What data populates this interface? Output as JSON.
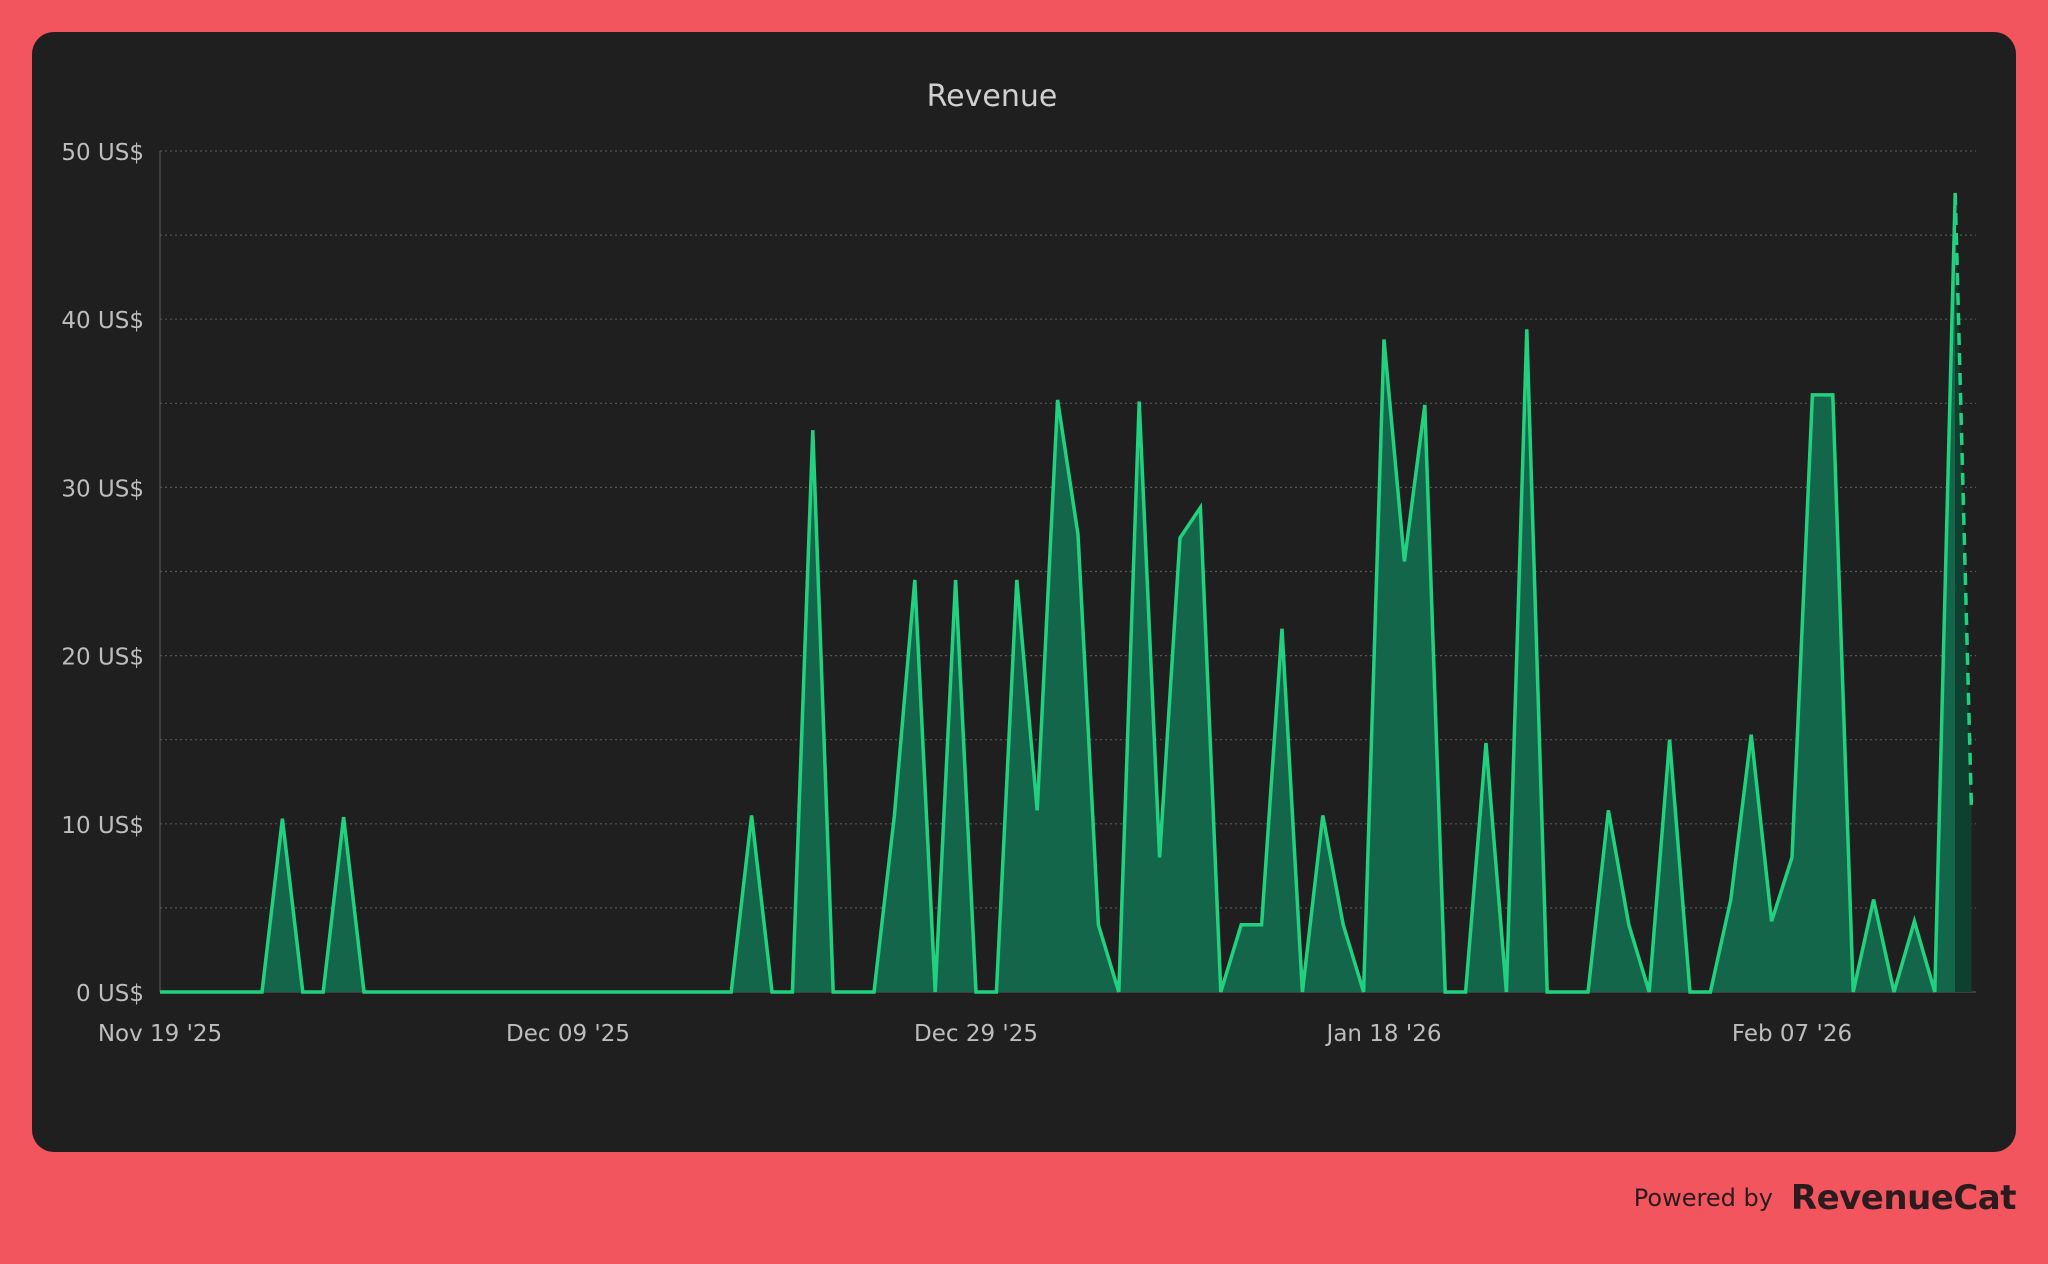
{
  "footer": {
    "powered_label": "Powered by",
    "brand": "RevenueCat"
  },
  "colors": {
    "page_bg": "#F2555E",
    "card_bg": "#1F1F1F",
    "line": "#22D17F",
    "fill": "#14664A",
    "fill_projected": "#0F3F2E",
    "text": "#BDBDBD",
    "grid": "#555555"
  },
  "chart_data": {
    "type": "area",
    "title": "Revenue",
    "xlabel": "",
    "ylabel": "",
    "ylim": [
      0,
      50
    ],
    "yticks": [
      0,
      10,
      20,
      30,
      40,
      50
    ],
    "ytick_labels": [
      "0 US$",
      "10 US$",
      "20 US$",
      "30 US$",
      "40 US$",
      "50 US$"
    ],
    "xtick_labels": [
      "Nov 19 '25",
      "Dec 09 '25",
      "Dec 29 '25",
      "Jan 18 '26",
      "Feb 07 '26"
    ],
    "xtick_positions": [
      0,
      20,
      40,
      60,
      80
    ],
    "grid": "horizontal dotted",
    "legend": "none",
    "series": [
      {
        "values": [
          0,
          0,
          0,
          0,
          0,
          0,
          10.3,
          0,
          0,
          10.4,
          0,
          0,
          0,
          0,
          0,
          0,
          0,
          0,
          0,
          0,
          0,
          0,
          0,
          0,
          0,
          0,
          0,
          0,
          0,
          10.5,
          0,
          0,
          33.4,
          0,
          0,
          0,
          10.5,
          24.5,
          0,
          24.5,
          0,
          0,
          24.5,
          10.8,
          35.2,
          27.2,
          4,
          0,
          35.1,
          8,
          27,
          28.8,
          0,
          4,
          4,
          21.6,
          0,
          10.5,
          4,
          0,
          38.8,
          25.6,
          34.9,
          0,
          0,
          14.8,
          0,
          39.4,
          0,
          0,
          0,
          10.8,
          4,
          0,
          15,
          0,
          0,
          5.5,
          15.3,
          4.2,
          8,
          35.5,
          35.5,
          0,
          5.5,
          0,
          4.2,
          0,
          47.5
        ],
        "projected": {
          "from_index": 88,
          "to_index": 88.8,
          "values": [
            47.5,
            10.7
          ]
        }
      }
    ]
  }
}
